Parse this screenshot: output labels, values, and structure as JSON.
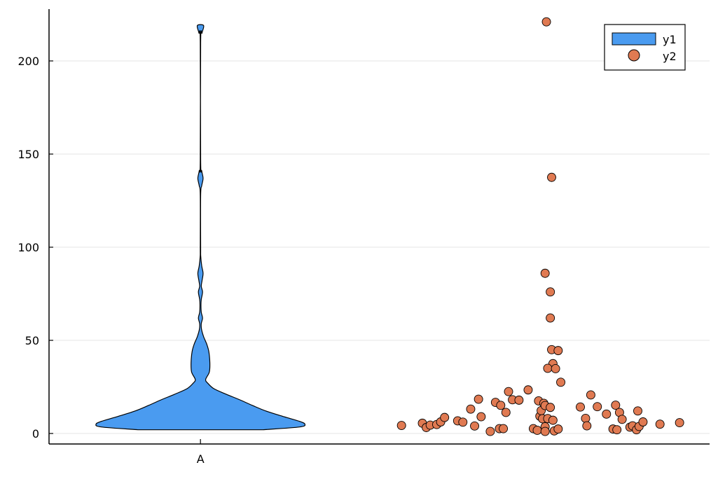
{
  "chart_data": {
    "type": "violin+scatter",
    "title": "",
    "xlabel": "",
    "ylabel": "",
    "x_categories": [
      "A"
    ],
    "ylim": [
      -5,
      228
    ],
    "yticks": [
      0,
      50,
      100,
      150,
      200
    ],
    "grid": true,
    "legend_position": "top-right",
    "series": [
      {
        "name": "y1",
        "kind": "violin",
        "category": "A",
        "color": "#4a9bf0",
        "min": 2,
        "max": 219,
        "density_profile": [
          {
            "y": 2,
            "w": 0.6
          },
          {
            "y": 3.5,
            "w": 0.95
          },
          {
            "y": 5,
            "w": 1.0
          },
          {
            "y": 6.5,
            "w": 0.95
          },
          {
            "y": 9,
            "w": 0.8
          },
          {
            "y": 12,
            "w": 0.63
          },
          {
            "y": 15,
            "w": 0.5
          },
          {
            "y": 18,
            "w": 0.38
          },
          {
            "y": 21,
            "w": 0.25
          },
          {
            "y": 24,
            "w": 0.13
          },
          {
            "y": 27,
            "w": 0.07
          },
          {
            "y": 29,
            "w": 0.05
          },
          {
            "y": 33,
            "w": 0.085
          },
          {
            "y": 38,
            "w": 0.09
          },
          {
            "y": 44,
            "w": 0.08
          },
          {
            "y": 48,
            "w": 0.06
          },
          {
            "y": 52,
            "w": 0.03
          },
          {
            "y": 56,
            "w": 0.01
          },
          {
            "y": 59,
            "w": 0.008
          },
          {
            "y": 62,
            "w": 0.02
          },
          {
            "y": 65,
            "w": 0.008
          },
          {
            "y": 69,
            "w": 0.005
          },
          {
            "y": 72,
            "w": 0.008
          },
          {
            "y": 76,
            "w": 0.02
          },
          {
            "y": 79,
            "w": 0.008
          },
          {
            "y": 82,
            "w": 0.015
          },
          {
            "y": 86,
            "w": 0.025
          },
          {
            "y": 90,
            "w": 0.012
          },
          {
            "y": 95,
            "w": 0.003
          },
          {
            "y": 100,
            "w": 0.002
          },
          {
            "y": 128,
            "w": 0.002
          },
          {
            "y": 133,
            "w": 0.012
          },
          {
            "y": 137,
            "w": 0.025
          },
          {
            "y": 141,
            "w": 0.012
          },
          {
            "y": 147,
            "w": 0.002
          },
          {
            "y": 210,
            "w": 0.002
          },
          {
            "y": 215,
            "w": 0.015
          },
          {
            "y": 219,
            "w": 0.03
          }
        ]
      },
      {
        "name": "y2",
        "kind": "scatter",
        "color": "#e07a52",
        "points": [
          {
            "x": 1.77,
            "y": 4.3
          },
          {
            "x": 1.85,
            "y": 5.5
          },
          {
            "x": 1.865,
            "y": 3.2
          },
          {
            "x": 1.88,
            "y": 4.5
          },
          {
            "x": 1.905,
            "y": 4.8
          },
          {
            "x": 1.92,
            "y": 6.2
          },
          {
            "x": 1.935,
            "y": 8.6
          },
          {
            "x": 1.985,
            "y": 6.8
          },
          {
            "x": 2.005,
            "y": 6.1
          },
          {
            "x": 2.035,
            "y": 13.1
          },
          {
            "x": 2.05,
            "y": 4.0
          },
          {
            "x": 2.065,
            "y": 18.4
          },
          {
            "x": 2.075,
            "y": 9.0
          },
          {
            "x": 2.11,
            "y": 1.1
          },
          {
            "x": 2.13,
            "y": 16.7
          },
          {
            "x": 2.145,
            "y": 2.6
          },
          {
            "x": 2.15,
            "y": 15.1
          },
          {
            "x": 2.16,
            "y": 2.6
          },
          {
            "x": 2.17,
            "y": 11.3
          },
          {
            "x": 2.18,
            "y": 22.5
          },
          {
            "x": 2.195,
            "y": 18.1
          },
          {
            "x": 2.22,
            "y": 17.9
          },
          {
            "x": 2.255,
            "y": 23.4
          },
          {
            "x": 2.275,
            "y": 2.6
          },
          {
            "x": 2.29,
            "y": 1.7
          },
          {
            "x": 2.295,
            "y": 17.5
          },
          {
            "x": 2.3,
            "y": 9.3
          },
          {
            "x": 2.305,
            "y": 12.3
          },
          {
            "x": 2.31,
            "y": 7.9
          },
          {
            "x": 2.315,
            "y": 16.2
          },
          {
            "x": 2.32,
            "y": 3.6
          },
          {
            "x": 2.32,
            "y": 1.1
          },
          {
            "x": 2.32,
            "y": 15.0
          },
          {
            "x": 2.33,
            "y": 8.0
          },
          {
            "x": 2.34,
            "y": 14.0
          },
          {
            "x": 2.35,
            "y": 7.1
          },
          {
            "x": 2.355,
            "y": 1.4
          },
          {
            "x": 2.37,
            "y": 2.4
          },
          {
            "x": 2.38,
            "y": 27.5
          },
          {
            "x": 2.32,
            "y": 86.0
          },
          {
            "x": 2.34,
            "y": 76.0
          },
          {
            "x": 2.34,
            "y": 62.0
          },
          {
            "x": 2.345,
            "y": 45.0
          },
          {
            "x": 2.37,
            "y": 44.5
          },
          {
            "x": 2.35,
            "y": 37.5
          },
          {
            "x": 2.33,
            "y": 35.0
          },
          {
            "x": 2.36,
            "y": 34.8
          },
          {
            "x": 2.345,
            "y": 137.5
          },
          {
            "x": 2.325,
            "y": 221.0
          },
          {
            "x": 2.455,
            "y": 14.2
          },
          {
            "x": 2.475,
            "y": 8.1
          },
          {
            "x": 2.48,
            "y": 4.1
          },
          {
            "x": 2.495,
            "y": 20.7
          },
          {
            "x": 2.52,
            "y": 14.4
          },
          {
            "x": 2.555,
            "y": 10.4
          },
          {
            "x": 2.58,
            "y": 2.4
          },
          {
            "x": 2.59,
            "y": 15.2
          },
          {
            "x": 2.595,
            "y": 2.0
          },
          {
            "x": 2.605,
            "y": 11.3
          },
          {
            "x": 2.615,
            "y": 7.6
          },
          {
            "x": 2.645,
            "y": 3.4
          },
          {
            "x": 2.655,
            "y": 4.1
          },
          {
            "x": 2.67,
            "y": 2.0
          },
          {
            "x": 2.68,
            "y": 3.8
          },
          {
            "x": 2.675,
            "y": 12.1
          },
          {
            "x": 2.695,
            "y": 6.2
          },
          {
            "x": 2.76,
            "y": 5.0
          },
          {
            "x": 2.835,
            "y": 5.8
          }
        ]
      }
    ]
  }
}
